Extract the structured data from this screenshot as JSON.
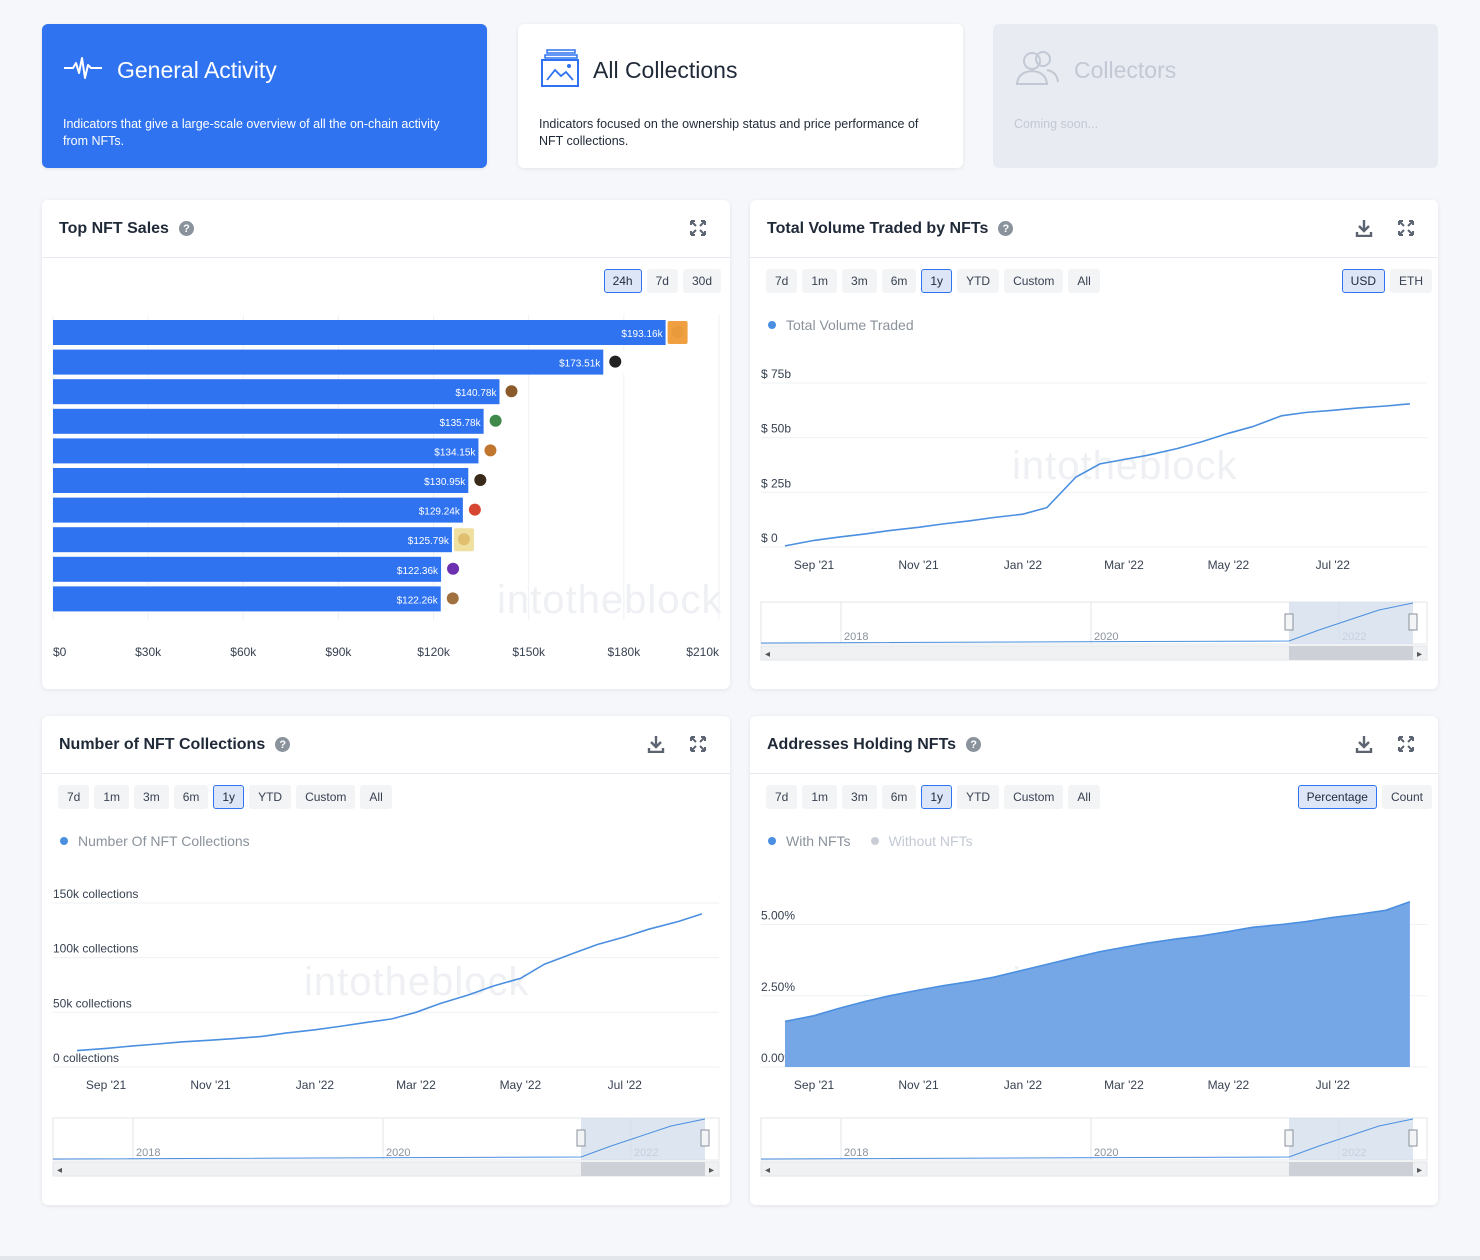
{
  "categories": [
    {
      "title": "General Activity",
      "desc": "Indicators that give a large-scale overview of all the on-chain activity from NFTs.",
      "icon": "pulse-icon"
    },
    {
      "title": "All Collections",
      "desc": "Indicators focused on the ownership status and price performance of NFT collections.",
      "icon": "gallery-icon"
    },
    {
      "title": "Collectors",
      "desc": "Coming soon...",
      "icon": "users-icon"
    }
  ],
  "colors": {
    "accent": "#2f73f0",
    "line": "#4a8fe0",
    "area": "#75a6e6",
    "nav_selection": "#d5deed"
  },
  "watermark": "intotheblock",
  "ranges": [
    "7d",
    "1m",
    "3m",
    "6m",
    "1y",
    "YTD",
    "Custom",
    "All"
  ],
  "selected_range": "1y",
  "navigator_years": [
    "2018",
    "2020",
    "2022"
  ],
  "top_sales": {
    "title": "Top NFT Sales",
    "periods": [
      "24h",
      "7d",
      "30d"
    ],
    "selected_period": "24h",
    "chart_data": {
      "type": "bar",
      "orientation": "horizontal",
      "values": [
        193.16,
        173.51,
        140.78,
        135.78,
        134.15,
        130.95,
        129.24,
        125.79,
        122.36,
        122.26
      ],
      "labels": [
        "$193.16k",
        "$173.51k",
        "$140.78k",
        "$135.78k",
        "$134.15k",
        "$130.95k",
        "$129.24k",
        "$125.79k",
        "$122.36k",
        "$122.26k"
      ],
      "x_ticks": [
        "$0",
        "$30k",
        "$60k",
        "$90k",
        "$120k",
        "$150k",
        "$180k",
        "$210k"
      ],
      "xlim": [
        0,
        210
      ],
      "unit": "$k"
    }
  },
  "volume": {
    "title": "Total Volume Traded by NFTs",
    "currencies": [
      "USD",
      "ETH"
    ],
    "selected_currency": "USD",
    "legend": "Total Volume Traded",
    "chart_data": {
      "type": "line",
      "series": [
        {
          "name": "Total Volume Traded",
          "x": [
            "2021-08-15",
            "2021-09-01",
            "2021-09-15",
            "2021-10-01",
            "2021-10-15",
            "2021-11-01",
            "2021-11-15",
            "2021-12-01",
            "2021-12-15",
            "2022-01-01",
            "2022-01-15",
            "2022-02-01",
            "2022-02-15",
            "2022-03-01",
            "2022-03-15",
            "2022-04-01",
            "2022-04-15",
            "2022-05-01",
            "2022-05-15",
            "2022-06-01",
            "2022-06-15",
            "2022-07-01",
            "2022-07-15",
            "2022-08-01",
            "2022-08-15"
          ],
          "y": [
            0.5,
            3,
            4.5,
            6,
            7.5,
            9,
            10.5,
            12,
            13.5,
            15,
            18,
            32,
            38,
            40,
            42,
            45,
            48,
            52,
            55,
            60,
            61.5,
            62.5,
            63.5,
            64.5,
            65.5
          ]
        }
      ],
      "x_ticks": [
        "Sep '21",
        "Nov '21",
        "Jan '22",
        "Mar '22",
        "May '22",
        "Jul '22"
      ],
      "y_ticks": [
        "$ 0",
        "$ 25b",
        "$ 50b",
        "$ 75b"
      ],
      "ylim": [
        0,
        75
      ],
      "unit": "$b"
    }
  },
  "collections": {
    "title": "Number of NFT Collections",
    "legend": "Number Of NFT Collections",
    "chart_data": {
      "type": "line",
      "series": [
        {
          "name": "Number Of NFT Collections",
          "x": [
            "2021-08-15",
            "2021-09-01",
            "2021-09-15",
            "2021-10-01",
            "2021-10-15",
            "2021-11-01",
            "2021-11-15",
            "2021-12-01",
            "2021-12-15",
            "2022-01-01",
            "2022-01-15",
            "2022-02-01",
            "2022-02-15",
            "2022-03-01",
            "2022-03-15",
            "2022-04-01",
            "2022-04-15",
            "2022-05-01",
            "2022-05-15",
            "2022-06-01",
            "2022-06-15",
            "2022-07-01",
            "2022-07-15",
            "2022-08-01",
            "2022-08-15"
          ],
          "y": [
            15,
            17,
            19,
            21,
            23,
            24.5,
            26,
            28,
            31,
            34,
            37,
            41,
            44,
            50,
            58,
            66,
            74,
            81,
            94,
            104,
            112,
            119,
            126,
            133,
            140
          ]
        }
      ],
      "x_ticks": [
        "Sep '21",
        "Nov '21",
        "Jan '22",
        "Mar '22",
        "May '22",
        "Jul '22"
      ],
      "y_ticks": [
        "0 collections",
        "50k collections",
        "100k collections",
        "150k collections"
      ],
      "ylim": [
        0,
        150
      ],
      "unit": "thousand collections"
    }
  },
  "addresses": {
    "title": "Addresses Holding NFTs",
    "modes": [
      "Percentage",
      "Count"
    ],
    "selected_mode": "Percentage",
    "legend": [
      "With NFTs",
      "Without NFTs"
    ],
    "chart_data": {
      "type": "area",
      "series": [
        {
          "name": "With NFTs",
          "x": [
            "2021-08-15",
            "2021-09-01",
            "2021-09-15",
            "2021-10-01",
            "2021-10-15",
            "2021-11-01",
            "2021-11-15",
            "2021-12-01",
            "2021-12-15",
            "2022-01-01",
            "2022-01-15",
            "2022-02-01",
            "2022-02-15",
            "2022-03-01",
            "2022-03-15",
            "2022-04-01",
            "2022-04-15",
            "2022-05-01",
            "2022-05-15",
            "2022-06-01",
            "2022-06-15",
            "2022-07-01",
            "2022-07-15",
            "2022-08-01",
            "2022-08-15"
          ],
          "y": [
            1.6,
            1.8,
            2.05,
            2.3,
            2.5,
            2.7,
            2.85,
            3.0,
            3.15,
            3.4,
            3.6,
            3.85,
            4.05,
            4.2,
            4.35,
            4.5,
            4.6,
            4.75,
            4.9,
            5.0,
            5.1,
            5.25,
            5.35,
            5.5,
            5.8
          ]
        }
      ],
      "x_ticks": [
        "Sep '21",
        "Nov '21",
        "Jan '22",
        "Mar '22",
        "May '22",
        "Jul '22"
      ],
      "y_ticks": [
        "0.00%",
        "2.50%",
        "5.00%"
      ],
      "ylim": [
        0,
        6
      ],
      "unit": "%"
    }
  }
}
